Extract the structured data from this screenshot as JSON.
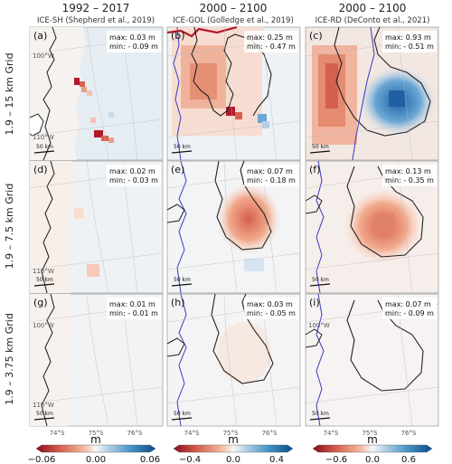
{
  "columns": [
    {
      "period": "1992 – 2017",
      "model": "ICE-SH (Shepherd et al., 2019)"
    },
    {
      "period": "2000 – 2100",
      "model": "ICE-GOL (Golledge et al., 2019)"
    },
    {
      "period": "2000 – 2100",
      "model": "ICE-RD (DeConto et al., 2021)"
    }
  ],
  "rows": [
    "1.9 – 15 km Grid",
    "1.9 – 7.5 km Grid",
    "1.9 – 3.75 km Grid"
  ],
  "panels": [
    {
      "label": "(a)",
      "max": "max: 0.03 m",
      "min": "min: - 0.09 m"
    },
    {
      "label": "(b)",
      "max": "max: 0.25 m",
      "min": "min: - 0.47 m"
    },
    {
      "label": "(c)",
      "max": "max: 0.93 m",
      "min": "min: - 0.51 m"
    },
    {
      "label": "(d)",
      "max": "max: 0.02 m",
      "min": "min: - 0.03 m"
    },
    {
      "label": "(e)",
      "max": "max: 0.07 m",
      "min": "min: - 0.18 m"
    },
    {
      "label": "(f)",
      "max": "max: 0.13 m",
      "min": "min: - 0.35 m"
    },
    {
      "label": "(g)",
      "max": "max: 0.01 m",
      "min": "min: - 0.01 m"
    },
    {
      "label": "(h)",
      "max": "max: 0.03 m",
      "min": "min: - 0.05 m"
    },
    {
      "label": "(i)",
      "max": "max: 0.07 m",
      "min": "min: - 0.09 m"
    }
  ],
  "lon_labels": [
    "100°W",
    "110°W"
  ],
  "lat_labels": [
    "74°S",
    "75°S",
    "76°S"
  ],
  "scale_bar": "50 km",
  "colorbars": [
    {
      "unit": "m",
      "ticks": [
        "−0.06",
        "0.00",
        "0.06"
      ]
    },
    {
      "unit": "m",
      "ticks": [
        "−0.4",
        "0.0",
        "0.4"
      ]
    },
    {
      "unit": "m",
      "ticks": [
        "−0.6",
        "0.0",
        "0.6"
      ]
    }
  ],
  "colors": {
    "negative": "#b2182b",
    "positive": "#2166ac",
    "ocean": "#e8eef3",
    "land": "#f6f4f2"
  }
}
